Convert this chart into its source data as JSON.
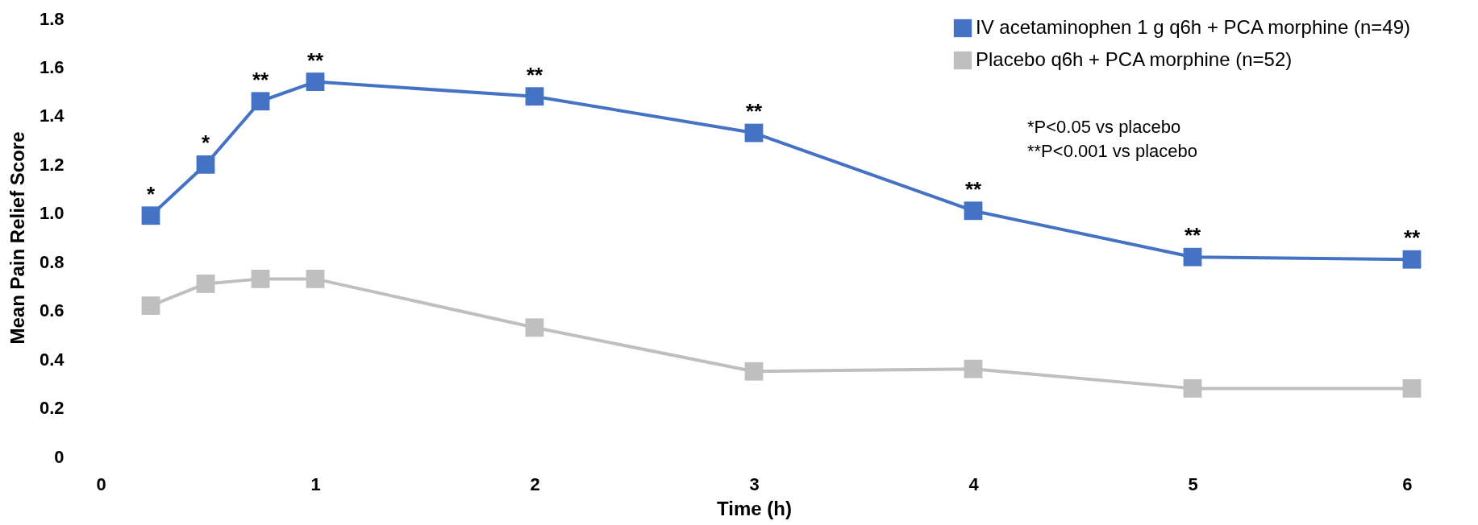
{
  "chart_data": {
    "type": "line",
    "xlabel": "Time (h)",
    "ylabel": "Mean Pain Relief Score",
    "xlim": [
      0,
      6
    ],
    "xticks": [
      0,
      1,
      2,
      3,
      4,
      5,
      6
    ],
    "ylim": [
      0,
      1.8
    ],
    "yticks": [
      0,
      0.2,
      0.4,
      0.6,
      0.8,
      {
        "value": 1,
        "label": "1.0"
      },
      1.2,
      1.4,
      1.6,
      1.8
    ],
    "marker": "square",
    "legend": "top right",
    "grid": false,
    "series": [
      {
        "name": "IV acetaminophen 1 g q6h + PCA morphine (n=49)",
        "color": "#4472c4",
        "x": [
          0.25,
          0.5,
          0.75,
          1,
          2,
          3,
          4,
          5,
          6
        ],
        "values": [
          0.99,
          1.2,
          1.46,
          1.54,
          1.48,
          1.33,
          1.01,
          0.82,
          0.81
        ]
      },
      {
        "name": "Placebo q6h + PCA morphine (n=52)",
        "color": "#bfbfbf",
        "x": [
          0.25,
          0.5,
          0.75,
          1,
          2,
          3,
          4,
          5,
          6
        ],
        "values": [
          0.62,
          0.71,
          0.73,
          0.73,
          0.53,
          0.35,
          0.36,
          0.28,
          0.28
        ]
      }
    ],
    "annotations": [
      {
        "text": "*",
        "x": 0.25,
        "y": 0.99
      },
      {
        "text": "*",
        "x": 0.5,
        "y": 1.2
      },
      {
        "text": "**",
        "x": 0.75,
        "y": 1.46
      },
      {
        "text": "**",
        "x": 1,
        "y": 1.54
      },
      {
        "text": "**",
        "x": 2,
        "y": 1.48
      },
      {
        "text": "**",
        "x": 3,
        "y": 1.33
      },
      {
        "text": "**",
        "x": 4,
        "y": 1.01
      },
      {
        "text": "**",
        "x": 5,
        "y": 0.82
      },
      {
        "text": "**",
        "x": 6,
        "y": 0.81
      },
      "*P<0.05 vs placebo",
      "**P<0.001 vs placebo"
    ]
  }
}
